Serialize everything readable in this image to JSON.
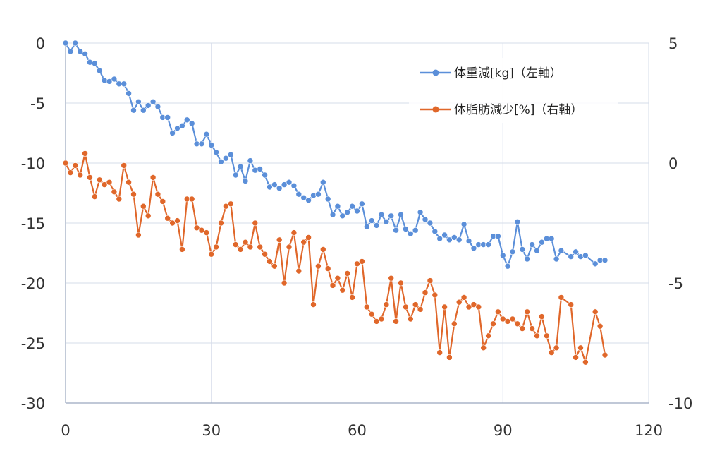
{
  "chart_data": {
    "type": "line",
    "x_ticks": [
      "0",
      "30",
      "60",
      "90",
      "120"
    ],
    "y_left_ticks": [
      "0",
      "-5",
      "-10",
      "-15",
      "-20",
      "-25",
      "-30"
    ],
    "y_right_ticks": [
      "5",
      "0",
      "-5",
      "-10"
    ],
    "xlim": [
      0,
      120
    ],
    "ylim_left": [
      -30,
      0
    ],
    "ylim_right": [
      -10,
      5
    ],
    "grid": true,
    "legend_position": "top-right",
    "series": [
      {
        "name": "体重減[kg]（左軸）",
        "axis": "left",
        "color": "#5b8fd9",
        "x": [
          0,
          1,
          2,
          3,
          4,
          5,
          6,
          7,
          8,
          9,
          10,
          11,
          12,
          13,
          14,
          15,
          16,
          17,
          18,
          19,
          20,
          21,
          22,
          23,
          24,
          25,
          26,
          27,
          28,
          29,
          30,
          31,
          32,
          33,
          34,
          35,
          36,
          37,
          38,
          39,
          40,
          41,
          42,
          43,
          44,
          45,
          46,
          47,
          48,
          49,
          50,
          51,
          52,
          53,
          54,
          55,
          56,
          57,
          58,
          59,
          60,
          61,
          62,
          63,
          64,
          65,
          66,
          67,
          68,
          69,
          70,
          71,
          72,
          73,
          74,
          75,
          76,
          77,
          78,
          79,
          80,
          81,
          82,
          83,
          84,
          85,
          86,
          87,
          88,
          89,
          90,
          91,
          92,
          93,
          94,
          95,
          96,
          97,
          98,
          99,
          100,
          101,
          102,
          104,
          105,
          106,
          107,
          109,
          110,
          111
        ],
        "y": [
          0,
          -0.7,
          0,
          -0.7,
          -0.9,
          -1.6,
          -1.7,
          -2.3,
          -3.1,
          -3.2,
          -3.0,
          -3.4,
          -3.4,
          -4.2,
          -5.6,
          -4.9,
          -5.6,
          -5.2,
          -4.9,
          -5.3,
          -6.2,
          -6.2,
          -7.5,
          -7.1,
          -6.9,
          -6.4,
          -6.7,
          -8.4,
          -8.4,
          -7.6,
          -8.5,
          -9.1,
          -9.9,
          -9.6,
          -9.3,
          -11.0,
          -10.3,
          -11.5,
          -9.8,
          -10.6,
          -10.5,
          -11.0,
          -12.0,
          -11.8,
          -12.1,
          -11.8,
          -11.6,
          -11.9,
          -12.6,
          -12.9,
          -13.1,
          -12.7,
          -12.6,
          -11.6,
          -13.0,
          -14.3,
          -13.6,
          -14.4,
          -14.1,
          -13.6,
          -14.0,
          -13.4,
          -15.3,
          -14.8,
          -15.2,
          -14.3,
          -14.9,
          -14.4,
          -15.6,
          -14.3,
          -15.5,
          -15.9,
          -15.6,
          -14.1,
          -14.7,
          -15.0,
          -15.7,
          -16.3,
          -16.0,
          -16.4,
          -16.2,
          -16.4,
          -15.1,
          -16.5,
          -17.1,
          -16.8,
          -16.8,
          -16.8,
          -16.1,
          -16.1,
          -17.7,
          -18.6,
          -17.4,
          -14.9,
          -17.2,
          -18.0,
          -16.8,
          -17.3,
          -16.6,
          -16.3,
          -16.3,
          -18.0,
          -17.3,
          -17.8,
          -17.4,
          -17.8,
          -17.7,
          -18.4,
          -18.1,
          -18.1
        ]
      },
      {
        "name": "体脂肪減少[%]（右軸）",
        "axis": "right",
        "color": "#e0672a",
        "x": [
          0,
          1,
          2,
          3,
          4,
          5,
          6,
          7,
          8,
          9,
          10,
          11,
          12,
          13,
          14,
          15,
          16,
          17,
          18,
          19,
          20,
          21,
          22,
          23,
          24,
          25,
          26,
          27,
          28,
          29,
          30,
          31,
          32,
          33,
          34,
          35,
          36,
          37,
          38,
          39,
          40,
          41,
          42,
          43,
          44,
          45,
          46,
          47,
          48,
          49,
          50,
          51,
          52,
          53,
          54,
          55,
          56,
          57,
          58,
          59,
          60,
          61,
          62,
          63,
          64,
          65,
          66,
          67,
          68,
          69,
          70,
          71,
          72,
          73,
          74,
          75,
          76,
          77,
          78,
          79,
          80,
          81,
          82,
          83,
          84,
          85,
          86,
          87,
          88,
          89,
          90,
          91,
          92,
          93,
          94,
          95,
          96,
          97,
          98,
          99,
          100,
          101,
          102,
          104,
          105,
          106,
          107,
          109,
          110,
          111
        ],
        "y": [
          0,
          -0.4,
          -0.1,
          -0.5,
          0.4,
          -0.6,
          -1.4,
          -0.7,
          -0.9,
          -0.8,
          -1.2,
          -1.5,
          -0.1,
          -0.8,
          -1.3,
          -3.0,
          -1.8,
          -2.2,
          -0.6,
          -1.3,
          -1.6,
          -2.3,
          -2.5,
          -2.4,
          -3.6,
          -1.5,
          -1.5,
          -2.7,
          -2.8,
          -2.9,
          -3.8,
          -3.5,
          -2.5,
          -1.8,
          -1.7,
          -3.4,
          -3.6,
          -3.3,
          -3.5,
          -2.5,
          -3.5,
          -3.8,
          -4.1,
          -4.3,
          -3.2,
          -5.0,
          -3.5,
          -2.9,
          -4.5,
          -3.3,
          -3.1,
          -5.9,
          -4.3,
          -3.6,
          -4.4,
          -5.1,
          -4.8,
          -5.3,
          -4.6,
          -5.6,
          -4.2,
          -4.1,
          -6.0,
          -6.3,
          -6.6,
          -6.5,
          -5.9,
          -4.8,
          -6.6,
          -5.0,
          -6.0,
          -6.5,
          -5.9,
          -6.1,
          -5.4,
          -4.9,
          -5.5,
          -7.9,
          -6.0,
          -8.1,
          -6.7,
          -5.8,
          -5.6,
          -6.0,
          -5.9,
          -6.0,
          -7.7,
          -7.2,
          -6.7,
          -6.2,
          -6.5,
          -6.6,
          -6.5,
          -6.7,
          -6.9,
          -6.2,
          -6.9,
          -7.2,
          -6.4,
          -7.2,
          -7.9,
          -7.7,
          -5.6,
          -5.9,
          -8.1,
          -7.7,
          -8.3,
          -6.2,
          -6.8,
          -8.0
        ]
      }
    ]
  }
}
